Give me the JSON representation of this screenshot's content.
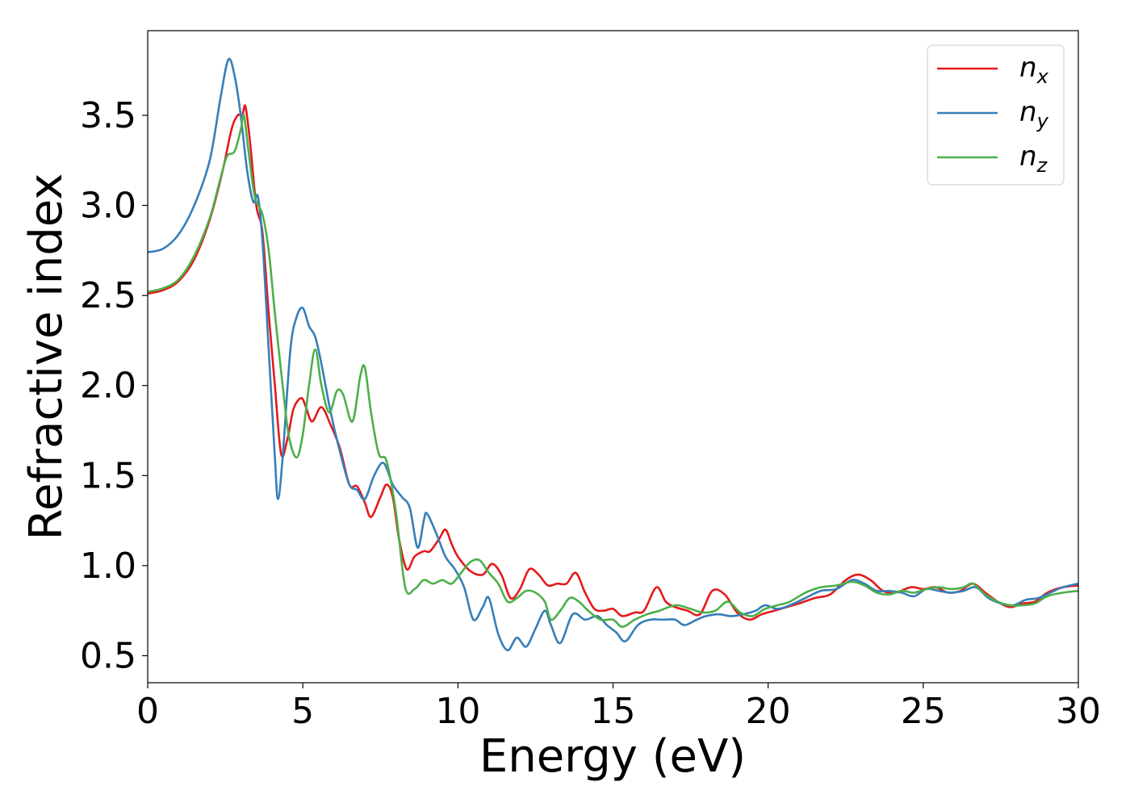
{
  "chart_data": {
    "type": "line",
    "xlabel": "Energy (eV)",
    "ylabel": "Refractive index",
    "xlim": [
      0,
      30
    ],
    "ylim": [
      0.35,
      3.97
    ],
    "grid": false,
    "legend_position": "top-right",
    "x_ticks": [
      "0",
      "5",
      "10",
      "15",
      "20",
      "25",
      "30"
    ],
    "y_ticks": [
      "0.5",
      "1.0",
      "1.5",
      "2.0",
      "2.5",
      "3.0",
      "3.5"
    ],
    "series": [
      {
        "name": "n",
        "subscript": "x",
        "color": "#e41a1c",
        "points": [
          [
            0,
            2.51
          ],
          [
            0.5,
            2.53
          ],
          [
            1.0,
            2.58
          ],
          [
            1.5,
            2.7
          ],
          [
            2.0,
            2.92
          ],
          [
            2.4,
            3.18
          ],
          [
            2.7,
            3.42
          ],
          [
            2.9,
            3.5
          ],
          [
            3.05,
            3.5
          ],
          [
            3.15,
            3.55
          ],
          [
            3.3,
            3.35
          ],
          [
            3.5,
            3.0
          ],
          [
            3.7,
            2.85
          ],
          [
            3.9,
            2.4
          ],
          [
            4.1,
            2.0
          ],
          [
            4.3,
            1.62
          ],
          [
            4.5,
            1.7
          ],
          [
            4.7,
            1.87
          ],
          [
            4.95,
            1.93
          ],
          [
            5.1,
            1.88
          ],
          [
            5.3,
            1.8
          ],
          [
            5.6,
            1.88
          ],
          [
            5.9,
            1.78
          ],
          [
            6.2,
            1.65
          ],
          [
            6.5,
            1.45
          ],
          [
            6.75,
            1.44
          ],
          [
            7.0,
            1.35
          ],
          [
            7.2,
            1.27
          ],
          [
            7.5,
            1.38
          ],
          [
            7.7,
            1.45
          ],
          [
            7.9,
            1.38
          ],
          [
            8.1,
            1.15
          ],
          [
            8.35,
            0.98
          ],
          [
            8.6,
            1.05
          ],
          [
            8.9,
            1.08
          ],
          [
            9.1,
            1.08
          ],
          [
            9.4,
            1.15
          ],
          [
            9.6,
            1.2
          ],
          [
            9.8,
            1.12
          ],
          [
            10.0,
            1.05
          ],
          [
            10.4,
            0.97
          ],
          [
            10.8,
            0.95
          ],
          [
            11.1,
            1.01
          ],
          [
            11.4,
            0.95
          ],
          [
            11.7,
            0.82
          ],
          [
            12.0,
            0.87
          ],
          [
            12.3,
            0.98
          ],
          [
            12.6,
            0.95
          ],
          [
            12.9,
            0.89
          ],
          [
            13.2,
            0.9
          ],
          [
            13.5,
            0.9
          ],
          [
            13.8,
            0.96
          ],
          [
            14.1,
            0.85
          ],
          [
            14.4,
            0.76
          ],
          [
            14.7,
            0.75
          ],
          [
            15.0,
            0.76
          ],
          [
            15.3,
            0.72
          ],
          [
            15.7,
            0.74
          ],
          [
            16.0,
            0.75
          ],
          [
            16.4,
            0.88
          ],
          [
            16.7,
            0.8
          ],
          [
            17.0,
            0.77
          ],
          [
            17.4,
            0.75
          ],
          [
            17.8,
            0.73
          ],
          [
            18.2,
            0.86
          ],
          [
            18.6,
            0.84
          ],
          [
            19.0,
            0.74
          ],
          [
            19.4,
            0.7
          ],
          [
            19.8,
            0.73
          ],
          [
            20.2,
            0.75
          ],
          [
            20.6,
            0.77
          ],
          [
            21.0,
            0.79
          ],
          [
            21.5,
            0.82
          ],
          [
            22.0,
            0.84
          ],
          [
            22.5,
            0.92
          ],
          [
            22.9,
            0.95
          ],
          [
            23.3,
            0.92
          ],
          [
            23.7,
            0.86
          ],
          [
            24.1,
            0.85
          ],
          [
            24.6,
            0.88
          ],
          [
            25.0,
            0.87
          ],
          [
            25.4,
            0.88
          ],
          [
            25.8,
            0.85
          ],
          [
            26.2,
            0.86
          ],
          [
            26.6,
            0.9
          ],
          [
            27.0,
            0.85
          ],
          [
            27.4,
            0.8
          ],
          [
            27.8,
            0.77
          ],
          [
            28.2,
            0.79
          ],
          [
            28.6,
            0.8
          ],
          [
            29.0,
            0.85
          ],
          [
            29.5,
            0.88
          ],
          [
            30.0,
            0.89
          ]
        ]
      },
      {
        "name": "n",
        "subscript": "y",
        "color": "#377eb8",
        "points": [
          [
            0,
            2.74
          ],
          [
            0.5,
            2.76
          ],
          [
            1.0,
            2.84
          ],
          [
            1.5,
            3.0
          ],
          [
            2.0,
            3.25
          ],
          [
            2.35,
            3.6
          ],
          [
            2.6,
            3.81
          ],
          [
            2.8,
            3.72
          ],
          [
            3.0,
            3.5
          ],
          [
            3.2,
            3.2
          ],
          [
            3.4,
            3.02
          ],
          [
            3.55,
            3.05
          ],
          [
            3.7,
            2.8
          ],
          [
            3.9,
            2.2
          ],
          [
            4.1,
            1.6
          ],
          [
            4.2,
            1.37
          ],
          [
            4.35,
            1.6
          ],
          [
            4.6,
            2.2
          ],
          [
            4.8,
            2.38
          ],
          [
            5.0,
            2.43
          ],
          [
            5.2,
            2.33
          ],
          [
            5.4,
            2.27
          ],
          [
            5.6,
            2.12
          ],
          [
            5.9,
            1.85
          ],
          [
            6.2,
            1.63
          ],
          [
            6.5,
            1.45
          ],
          [
            6.75,
            1.42
          ],
          [
            7.0,
            1.37
          ],
          [
            7.3,
            1.5
          ],
          [
            7.6,
            1.57
          ],
          [
            7.9,
            1.45
          ],
          [
            8.2,
            1.38
          ],
          [
            8.45,
            1.32
          ],
          [
            8.7,
            1.1
          ],
          [
            8.9,
            1.25
          ],
          [
            9.0,
            1.29
          ],
          [
            9.3,
            1.18
          ],
          [
            9.6,
            1.05
          ],
          [
            9.9,
            0.98
          ],
          [
            10.2,
            0.88
          ],
          [
            10.5,
            0.7
          ],
          [
            10.8,
            0.77
          ],
          [
            11.0,
            0.82
          ],
          [
            11.3,
            0.62
          ],
          [
            11.6,
            0.53
          ],
          [
            11.9,
            0.6
          ],
          [
            12.2,
            0.55
          ],
          [
            12.5,
            0.65
          ],
          [
            12.8,
            0.75
          ],
          [
            13.0,
            0.67
          ],
          [
            13.3,
            0.57
          ],
          [
            13.7,
            0.73
          ],
          [
            14.1,
            0.7
          ],
          [
            14.5,
            0.72
          ],
          [
            14.8,
            0.67
          ],
          [
            15.1,
            0.63
          ],
          [
            15.4,
            0.58
          ],
          [
            15.8,
            0.67
          ],
          [
            16.2,
            0.7
          ],
          [
            16.6,
            0.7
          ],
          [
            17.0,
            0.7
          ],
          [
            17.3,
            0.67
          ],
          [
            17.7,
            0.7
          ],
          [
            18.0,
            0.72
          ],
          [
            18.4,
            0.73
          ],
          [
            18.8,
            0.72
          ],
          [
            19.2,
            0.73
          ],
          [
            19.6,
            0.75
          ],
          [
            19.9,
            0.78
          ],
          [
            20.3,
            0.76
          ],
          [
            20.7,
            0.78
          ],
          [
            21.2,
            0.82
          ],
          [
            21.7,
            0.86
          ],
          [
            22.2,
            0.87
          ],
          [
            22.7,
            0.92
          ],
          [
            23.1,
            0.9
          ],
          [
            23.5,
            0.86
          ],
          [
            23.9,
            0.86
          ],
          [
            24.3,
            0.85
          ],
          [
            24.7,
            0.83
          ],
          [
            25.1,
            0.87
          ],
          [
            25.5,
            0.86
          ],
          [
            25.9,
            0.85
          ],
          [
            26.3,
            0.86
          ],
          [
            26.7,
            0.88
          ],
          [
            27.1,
            0.82
          ],
          [
            27.5,
            0.79
          ],
          [
            27.9,
            0.78
          ],
          [
            28.3,
            0.81
          ],
          [
            28.7,
            0.82
          ],
          [
            29.1,
            0.85
          ],
          [
            29.5,
            0.88
          ],
          [
            30.0,
            0.9
          ]
        ]
      },
      {
        "name": "n",
        "subscript": "z",
        "color": "#4daf4a",
        "points": [
          [
            0,
            2.52
          ],
          [
            0.5,
            2.54
          ],
          [
            1.0,
            2.59
          ],
          [
            1.5,
            2.72
          ],
          [
            2.0,
            2.93
          ],
          [
            2.3,
            3.12
          ],
          [
            2.55,
            3.27
          ],
          [
            2.8,
            3.3
          ],
          [
            3.0,
            3.42
          ],
          [
            3.1,
            3.5
          ],
          [
            3.25,
            3.3
          ],
          [
            3.45,
            3.05
          ],
          [
            3.7,
            2.95
          ],
          [
            3.9,
            2.75
          ],
          [
            4.1,
            2.4
          ],
          [
            4.35,
            2.0
          ],
          [
            4.55,
            1.72
          ],
          [
            4.8,
            1.6
          ],
          [
            5.0,
            1.73
          ],
          [
            5.2,
            2.0
          ],
          [
            5.4,
            2.2
          ],
          [
            5.6,
            2.0
          ],
          [
            5.85,
            1.85
          ],
          [
            6.1,
            1.97
          ],
          [
            6.3,
            1.95
          ],
          [
            6.6,
            1.8
          ],
          [
            6.85,
            2.05
          ],
          [
            7.0,
            2.1
          ],
          [
            7.2,
            1.85
          ],
          [
            7.45,
            1.62
          ],
          [
            7.7,
            1.58
          ],
          [
            8.0,
            1.3
          ],
          [
            8.3,
            0.88
          ],
          [
            8.6,
            0.87
          ],
          [
            8.9,
            0.92
          ],
          [
            9.2,
            0.9
          ],
          [
            9.5,
            0.92
          ],
          [
            9.8,
            0.9
          ],
          [
            10.1,
            0.96
          ],
          [
            10.4,
            1.02
          ],
          [
            10.7,
            1.03
          ],
          [
            11.0,
            0.96
          ],
          [
            11.3,
            0.9
          ],
          [
            11.6,
            0.8
          ],
          [
            11.9,
            0.82
          ],
          [
            12.2,
            0.86
          ],
          [
            12.5,
            0.85
          ],
          [
            12.8,
            0.8
          ],
          [
            13.0,
            0.7
          ],
          [
            13.3,
            0.75
          ],
          [
            13.6,
            0.82
          ],
          [
            13.9,
            0.8
          ],
          [
            14.2,
            0.75
          ],
          [
            14.6,
            0.7
          ],
          [
            15.0,
            0.7
          ],
          [
            15.3,
            0.66
          ],
          [
            15.7,
            0.7
          ],
          [
            16.1,
            0.73
          ],
          [
            16.5,
            0.75
          ],
          [
            16.8,
            0.77
          ],
          [
            17.1,
            0.78
          ],
          [
            17.5,
            0.76
          ],
          [
            17.9,
            0.74
          ],
          [
            18.3,
            0.75
          ],
          [
            18.7,
            0.8
          ],
          [
            19.1,
            0.74
          ],
          [
            19.5,
            0.72
          ],
          [
            19.9,
            0.76
          ],
          [
            20.3,
            0.78
          ],
          [
            20.7,
            0.8
          ],
          [
            21.2,
            0.85
          ],
          [
            21.7,
            0.88
          ],
          [
            22.2,
            0.89
          ],
          [
            22.7,
            0.91
          ],
          [
            23.1,
            0.89
          ],
          [
            23.5,
            0.85
          ],
          [
            23.9,
            0.84
          ],
          [
            24.3,
            0.86
          ],
          [
            24.7,
            0.85
          ],
          [
            25.1,
            0.87
          ],
          [
            25.5,
            0.88
          ],
          [
            25.9,
            0.87
          ],
          [
            26.3,
            0.88
          ],
          [
            26.6,
            0.9
          ],
          [
            27.0,
            0.84
          ],
          [
            27.4,
            0.8
          ],
          [
            27.8,
            0.78
          ],
          [
            28.2,
            0.78
          ],
          [
            28.6,
            0.79
          ],
          [
            29.0,
            0.83
          ],
          [
            29.5,
            0.85
          ],
          [
            30.0,
            0.86
          ]
        ]
      }
    ]
  }
}
